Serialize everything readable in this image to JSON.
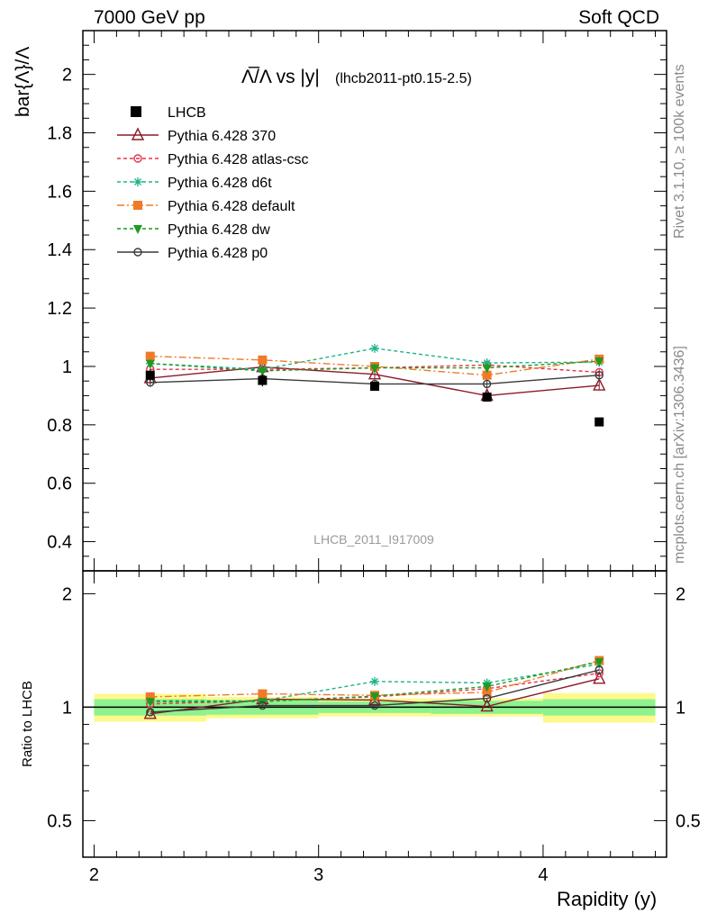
{
  "header": {
    "left": "7000 GeV pp",
    "right": "Soft QCD"
  },
  "side_labels": {
    "rivet": "Rivet 3.1.10, ≥ 100k events",
    "mcplots": "mcplots.cern.ch [arXiv:1306.3436]"
  },
  "chart_data": {
    "type": "scatter",
    "title_math": "Λ̅/Λ vs |y|",
    "title_tag": "(lhcb2011-pt0.15-2.5)",
    "ylabel": "bar{Λ}/Λ",
    "xlabel": "Rapidity (y)",
    "watermark": "LHCB_2011_I917009",
    "xlim": [
      1.95,
      4.55
    ],
    "ylim": [
      0.3,
      2.15
    ],
    "x_ticks": [
      "2",
      "3",
      "4"
    ],
    "y_ticks": [
      "0.4",
      "0.6",
      "0.8",
      "1",
      "1.2",
      "1.4",
      "1.6",
      "1.8",
      "2"
    ],
    "bins": [
      {
        "lo": 2.0,
        "hi": 2.5,
        "center": 2.25
      },
      {
        "lo": 2.5,
        "hi": 3.0,
        "center": 2.75
      },
      {
        "lo": 3.0,
        "hi": 3.5,
        "center": 3.25
      },
      {
        "lo": 3.5,
        "hi": 4.0,
        "center": 3.75
      },
      {
        "lo": 4.0,
        "hi": 4.5,
        "center": 4.25
      }
    ],
    "data": {
      "name": "LHCB",
      "x": [
        2.25,
        2.75,
        3.25,
        3.75,
        4.25
      ],
      "y": [
        0.97,
        0.952,
        0.932,
        0.895,
        0.81
      ],
      "err": [
        0.02,
        0.02,
        0.012,
        0.012,
        0.01
      ]
    },
    "series": [
      {
        "name": "Pythia 6.428 370",
        "color": "#8b1a2a",
        "dash": "",
        "marker": "triangle-open",
        "x": [
          2.25,
          2.75,
          3.25,
          3.75,
          4.25
        ],
        "y": [
          0.96,
          0.998,
          0.973,
          0.9,
          0.935
        ]
      },
      {
        "name": "Pythia 6.428 atlas-csc",
        "color": "#e8304a",
        "dash": "4,3",
        "marker": "circle-open",
        "x": [
          2.25,
          2.75,
          3.25,
          3.75,
          4.25
        ],
        "y": [
          0.99,
          0.99,
          0.995,
          1.005,
          0.98
        ]
      },
      {
        "name": "Pythia 6.428 d6t",
        "color": "#1ab58a",
        "dash": "4,3",
        "marker": "star",
        "x": [
          2.25,
          2.75,
          3.25,
          3.75,
          4.25
        ],
        "y": [
          1.01,
          0.99,
          1.062,
          1.012,
          1.015
        ]
      },
      {
        "name": "Pythia 6.428 default",
        "color": "#f07a28",
        "dash": "8,3,2,3",
        "marker": "square",
        "x": [
          2.25,
          2.75,
          3.25,
          3.75,
          4.25
        ],
        "y": [
          1.035,
          1.022,
          1.0,
          0.97,
          1.025
        ]
      },
      {
        "name": "Pythia 6.428 dw",
        "color": "#1f9a1f",
        "dash": "4,3",
        "marker": "triangle-down",
        "x": [
          2.25,
          2.75,
          3.25,
          3.75,
          4.25
        ],
        "y": [
          1.01,
          0.985,
          0.995,
          0.995,
          1.018
        ]
      },
      {
        "name": "Pythia 6.428 p0",
        "color": "#3a3a3a",
        "dash": "",
        "marker": "circle-open",
        "x": [
          2.25,
          2.75,
          3.25,
          3.75,
          4.25
        ],
        "y": [
          0.945,
          0.958,
          0.94,
          0.94,
          0.97
        ]
      }
    ],
    "ratio": {
      "ylabel": "Ratio to LHCB",
      "ylim": [
        0.4,
        2.3
      ],
      "y_ticks": [
        "0.5",
        "1",
        "2"
      ],
      "band_green": [
        0.05,
        0.045,
        0.035,
        0.04,
        0.05
      ],
      "band_yellow": [
        0.085,
        0.065,
        0.055,
        0.055,
        0.09
      ],
      "series": [
        {
          "name": "Pythia 6.428 370",
          "y": [
            0.96,
            1.05,
            1.045,
            1.005,
            1.19
          ]
        },
        {
          "name": "Pythia 6.428 atlas-csc",
          "y": [
            1.02,
            1.04,
            1.065,
            1.12,
            1.23
          ]
        },
        {
          "name": "Pythia 6.428 d6t",
          "y": [
            1.04,
            1.04,
            1.17,
            1.16,
            1.3
          ]
        },
        {
          "name": "Pythia 6.428 default",
          "y": [
            1.065,
            1.085,
            1.075,
            1.095,
            1.33
          ]
        },
        {
          "name": "Pythia 6.428 dw",
          "y": [
            1.035,
            1.035,
            1.07,
            1.135,
            1.32
          ]
        },
        {
          "name": "Pythia 6.428 p0",
          "y": [
            0.97,
            1.01,
            1.01,
            1.055,
            1.255
          ]
        }
      ]
    }
  }
}
